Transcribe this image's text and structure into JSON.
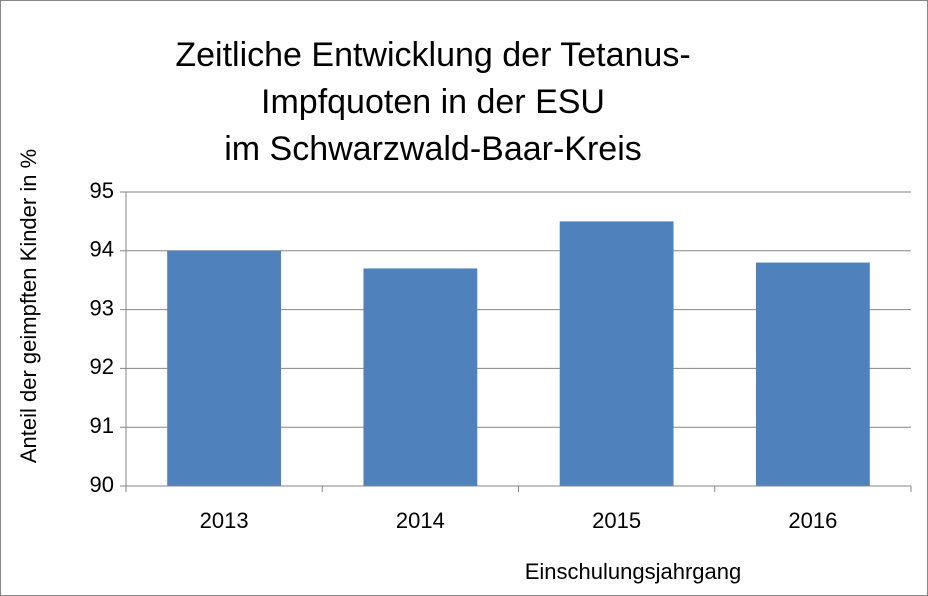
{
  "chart_data": {
    "type": "bar",
    "title": [
      "Zeitliche Entwicklung der Tetanus-",
      "Impfquoten in der ESU",
      "im Schwarzwald-Baar-Kreis"
    ],
    "x_label": "Einschulungsjahrgang",
    "y_label": "Anteil der geimpften Kinder in %",
    "categories": [
      "2013",
      "2014",
      "2015",
      "2016"
    ],
    "values": [
      94.0,
      93.7,
      94.5,
      93.8
    ],
    "color": "#4f81bd",
    "ylim": [
      90,
      95
    ],
    "yticks": [
      90,
      91,
      92,
      93,
      94,
      95
    ],
    "grid": true
  }
}
